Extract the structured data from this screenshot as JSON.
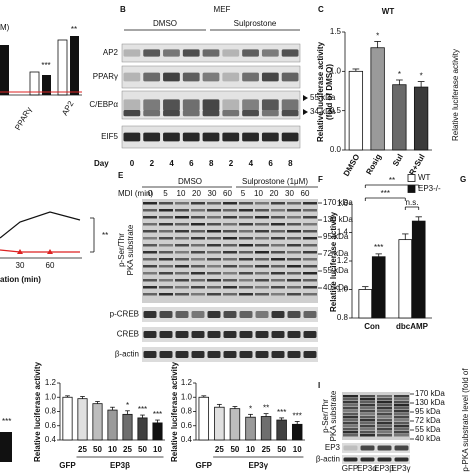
{
  "panels": {
    "B": {
      "letter": "B",
      "title": "MEF",
      "groups": [
        "DMSO",
        "Sulprostone"
      ],
      "rows": [
        "AP2",
        "PPARγ",
        "C/EBPα",
        "EIF5"
      ],
      "markers": [
        "55 kDa",
        "34 kDa"
      ],
      "axis_label": "Day",
      "lanes": [
        "0",
        "2",
        "4",
        "6",
        "8",
        "2",
        "4",
        "6",
        "8"
      ]
    },
    "E": {
      "letter": "E",
      "groups": [
        "DMSO",
        "Sulprostone (1μM)"
      ],
      "lane_label": "MDI (min)",
      "lanes": [
        "0",
        "5",
        "10",
        "20",
        "30",
        "60",
        "5",
        "10",
        "20",
        "30",
        "60"
      ],
      "substrate_label": [
        "p-Ser/Thr",
        "PKA substrate"
      ],
      "rows": [
        "p-CREB",
        "CREB",
        "β-actin"
      ],
      "markers": [
        "170 kDa",
        "130 kDa",
        "95 kDa",
        "72 kDa",
        "55 kDa",
        "40 kDa"
      ]
    },
    "I": {
      "letter": "I",
      "substrate_label": [
        "p-Ser/Thr",
        "PKA substrate"
      ],
      "rows": [
        "EP3",
        "β-actin"
      ],
      "markers": [
        "170 kDa",
        "130 kDa",
        "95 kDa",
        "72 kDa",
        "55 kDa",
        "40 kDa"
      ],
      "lanes": [
        "GFP",
        "EP3α",
        "EP3β",
        "EP3γ"
      ],
      "side_label": "p-PKA substrate level (fold of"
    },
    "G": {
      "letter": "G"
    }
  },
  "fragments": {
    "top_left": [
      "M)",
      "PPARγ",
      "AP2",
      "***",
      "**"
    ],
    "mid_left": [
      "**",
      "30",
      "60",
      "ation (min)"
    ],
    "bottom_left": [
      "***"
    ],
    "right_top": [
      "Relative luciferase activity"
    ]
  },
  "chart_data": [
    {
      "type": "bar",
      "letter": "C",
      "title": "WT",
      "y_label": [
        "Relative luciferase activity",
        "(fold of DMSO)"
      ],
      "categories": [
        "DMSO",
        "Rosig",
        "Sul",
        "R+Sul"
      ],
      "values": [
        1.0,
        1.3,
        0.83,
        0.8
      ],
      "errors": [
        0.03,
        0.08,
        0.06,
        0.07
      ],
      "colors": [
        "#ffffff",
        "#9a9a9a",
        "#6a6a6a",
        "#3a3a3a"
      ],
      "ylim": [
        0,
        1.5
      ],
      "yticks": [
        {
          "value": 0,
          "label": "0.0"
        },
        0.5,
        {
          "value": 1,
          "label": "1.0"
        },
        1.5
      ],
      "annotations": [
        "*",
        "*",
        "*"
      ]
    },
    {
      "type": "bar",
      "letter": "F",
      "y_label": [
        "Relative luciferase activity"
      ],
      "categories": [
        "Con",
        "dbcAMP"
      ],
      "series": [
        {
          "name": "WT",
          "color": "#ffffff",
          "values": [
            1.0,
            1.35
          ],
          "errors": [
            0.02,
            0.04
          ]
        },
        {
          "name": "EP3-/-",
          "color": "#111111",
          "values": [
            1.23,
            1.48
          ],
          "errors": [
            0.02,
            0.03
          ]
        }
      ],
      "ylim": [
        0.8,
        1.6
      ],
      "yticks": [
        0.8,
        {
          "value": 1,
          "label": "1.0"
        },
        1.2,
        1.4,
        1.6
      ],
      "annotations": [
        "***",
        "***",
        "**",
        "n.s."
      ]
    },
    {
      "type": "bar",
      "y_label": [
        "Relative luciferase activity"
      ],
      "group_label": "EP3β",
      "categories": [
        "GFP",
        "25",
        "50",
        "10",
        "25",
        "50",
        "10"
      ],
      "values": [
        1.0,
        0.98,
        0.91,
        0.82,
        0.76,
        0.71,
        0.64
      ],
      "errors": [
        0.02,
        0.03,
        0.03,
        0.04,
        0.05,
        0.04,
        0.04
      ],
      "colors": [
        "#ffffff",
        "#e0e0e0",
        "#bdbdbd",
        "#9a9a9a",
        "#6e6e6e",
        "#404040",
        "#111111"
      ],
      "ylim": [
        0.4,
        1.2
      ],
      "yticks": [
        0.4,
        0.6,
        0.8,
        {
          "value": 1,
          "label": "1.0"
        },
        1.2
      ],
      "annotations": [
        "*",
        "***",
        "***"
      ]
    },
    {
      "type": "bar",
      "y_label": [
        "Relative luciferase activity"
      ],
      "group_label": "EP3γ",
      "categories": [
        "GFP",
        "25",
        "50",
        "10",
        "25",
        "50",
        "10"
      ],
      "values": [
        1.0,
        0.86,
        0.84,
        0.72,
        0.73,
        0.68,
        0.62
      ],
      "errors": [
        0.02,
        0.04,
        0.03,
        0.04,
        0.04,
        0.03,
        0.04
      ],
      "colors": [
        "#ffffff",
        "#e0e0e0",
        "#bdbdbd",
        "#9a9a9a",
        "#6e6e6e",
        "#404040",
        "#111111"
      ],
      "ylim": [
        0.4,
        1.2
      ],
      "yticks": [
        0.4,
        0.6,
        0.8,
        {
          "value": 1,
          "label": "1.0"
        },
        1.2
      ],
      "annotations": [
        "*",
        "**",
        "***",
        "***"
      ]
    }
  ]
}
